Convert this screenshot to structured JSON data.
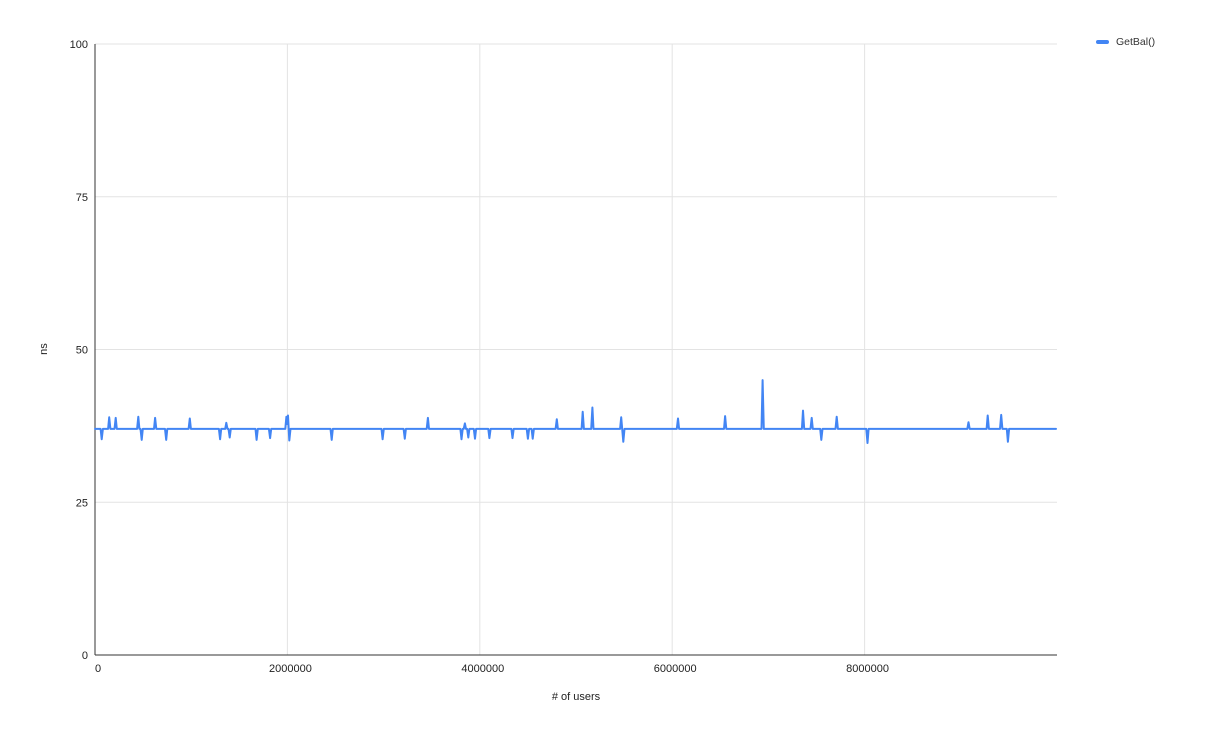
{
  "chart_data": {
    "type": "line",
    "title": "",
    "xlabel": "# of users",
    "ylabel": "ns",
    "xlim": [
      0,
      10000000
    ],
    "ylim": [
      0,
      100
    ],
    "x_ticks": [
      0,
      2000000,
      4000000,
      6000000,
      8000000
    ],
    "y_ticks": [
      0,
      25,
      50,
      75,
      100
    ],
    "grid": true,
    "legend_position": "top-right",
    "series": [
      {
        "name": "GetBal()",
        "color": "#4285F4",
        "baseline": 37,
        "points": [
          [
            0,
            37
          ],
          [
            58000,
            37
          ],
          [
            70000,
            35.3
          ],
          [
            82000,
            37
          ],
          [
            136000,
            37
          ],
          [
            148000,
            38.9
          ],
          [
            160000,
            37
          ],
          [
            203000,
            37
          ],
          [
            215000,
            38.8
          ],
          [
            227000,
            37
          ],
          [
            438000,
            37
          ],
          [
            450000,
            39
          ],
          [
            462000,
            37
          ],
          [
            473000,
            37
          ],
          [
            485000,
            35.2
          ],
          [
            497000,
            37
          ],
          [
            613000,
            37
          ],
          [
            625000,
            38.8
          ],
          [
            637000,
            37
          ],
          [
            728000,
            37
          ],
          [
            740000,
            35.2
          ],
          [
            752000,
            37
          ],
          [
            973000,
            37
          ],
          [
            985000,
            38.7
          ],
          [
            997000,
            37
          ],
          [
            1288000,
            37
          ],
          [
            1300000,
            35.3
          ],
          [
            1312000,
            37
          ],
          [
            1353000,
            37
          ],
          [
            1365000,
            38
          ],
          [
            1377000,
            37
          ],
          [
            1388000,
            37
          ],
          [
            1400000,
            35.6
          ],
          [
            1412000,
            37
          ],
          [
            1668000,
            37
          ],
          [
            1680000,
            35.2
          ],
          [
            1692000,
            37
          ],
          [
            1808000,
            37
          ],
          [
            1820000,
            35.5
          ],
          [
            1832000,
            37
          ],
          [
            1978000,
            37
          ],
          [
            1990000,
            39
          ],
          [
            1998000,
            37.8
          ],
          [
            2006000,
            39.2
          ],
          [
            2020000,
            35.1
          ],
          [
            2032000,
            37
          ],
          [
            2448000,
            37
          ],
          [
            2460000,
            35.2
          ],
          [
            2472000,
            37
          ],
          [
            2978000,
            37
          ],
          [
            2990000,
            35.3
          ],
          [
            3002000,
            37
          ],
          [
            3208000,
            37
          ],
          [
            3220000,
            35.4
          ],
          [
            3232000,
            37
          ],
          [
            3448000,
            37
          ],
          [
            3460000,
            38.8
          ],
          [
            3472000,
            37
          ],
          [
            3798000,
            37
          ],
          [
            3810000,
            35.3
          ],
          [
            3822000,
            37
          ],
          [
            3833000,
            37
          ],
          [
            3845000,
            37.9
          ],
          [
            3857000,
            37
          ],
          [
            3868000,
            37
          ],
          [
            3880000,
            35.6
          ],
          [
            3892000,
            37
          ],
          [
            3938000,
            37
          ],
          [
            3950000,
            35.4
          ],
          [
            3962000,
            37
          ],
          [
            4088000,
            37
          ],
          [
            4100000,
            35.5
          ],
          [
            4112000,
            37
          ],
          [
            4328000,
            37
          ],
          [
            4340000,
            35.5
          ],
          [
            4352000,
            37
          ],
          [
            4488000,
            37
          ],
          [
            4500000,
            35.4
          ],
          [
            4512000,
            37
          ],
          [
            4538000,
            37
          ],
          [
            4550000,
            35.4
          ],
          [
            4562000,
            37
          ],
          [
            4788000,
            37
          ],
          [
            4800000,
            38.6
          ],
          [
            4812000,
            37
          ],
          [
            5058000,
            37
          ],
          [
            5070000,
            39.8
          ],
          [
            5082000,
            37
          ],
          [
            5158000,
            37
          ],
          [
            5170000,
            40.5
          ],
          [
            5182000,
            37
          ],
          [
            5458000,
            37
          ],
          [
            5470000,
            38.9
          ],
          [
            5492000,
            34.9
          ],
          [
            5504000,
            37
          ],
          [
            6048000,
            37
          ],
          [
            6060000,
            38.7
          ],
          [
            6072000,
            37
          ],
          [
            6538000,
            37
          ],
          [
            6550000,
            39.1
          ],
          [
            6562000,
            37
          ],
          [
            6928000,
            37
          ],
          [
            6940000,
            45
          ],
          [
            6952000,
            37
          ],
          [
            7348000,
            37
          ],
          [
            7360000,
            40
          ],
          [
            7372000,
            37
          ],
          [
            7438000,
            37
          ],
          [
            7450000,
            38.8
          ],
          [
            7462000,
            37
          ],
          [
            7538000,
            37
          ],
          [
            7550000,
            35.2
          ],
          [
            7562000,
            37
          ],
          [
            7698000,
            37
          ],
          [
            7710000,
            39
          ],
          [
            7722000,
            37
          ],
          [
            8018000,
            37
          ],
          [
            8030000,
            34.7
          ],
          [
            8042000,
            37
          ],
          [
            9068000,
            37
          ],
          [
            9080000,
            38.1
          ],
          [
            9092000,
            37
          ],
          [
            9268000,
            37
          ],
          [
            9280000,
            39.2
          ],
          [
            9292000,
            37
          ],
          [
            9408000,
            37
          ],
          [
            9420000,
            39.3
          ],
          [
            9432000,
            37
          ],
          [
            9478000,
            37
          ],
          [
            9490000,
            34.9
          ],
          [
            9502000,
            37
          ],
          [
            9990000,
            37
          ]
        ]
      }
    ]
  },
  "legend": {
    "items": [
      {
        "label": "GetBal()",
        "color": "#4285F4"
      }
    ]
  },
  "colors": {
    "series_blue": "#4285F4",
    "gridline": "#e3e3e3",
    "axis": "#333333",
    "tick_text": "#222222",
    "background": "#ffffff"
  }
}
